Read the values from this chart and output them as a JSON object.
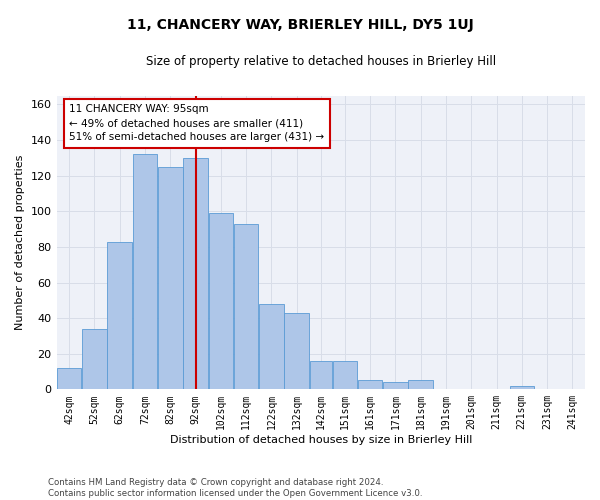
{
  "title": "11, CHANCERY WAY, BRIERLEY HILL, DY5 1UJ",
  "subtitle": "Size of property relative to detached houses in Brierley Hill",
  "xlabel": "Distribution of detached houses by size in Brierley Hill",
  "ylabel": "Number of detached properties",
  "bar_color": "#aec6e8",
  "bar_edge_color": "#5b9bd5",
  "vline_color": "#cc0000",
  "vline_x": 97,
  "annotation_text": "11 CHANCERY WAY: 95sqm\n← 49% of detached houses are smaller (411)\n51% of semi-detached houses are larger (431) →",
  "bins_left": [
    42,
    52,
    62,
    72,
    82,
    92,
    102,
    112,
    122,
    132,
    142,
    151,
    161,
    171,
    181,
    191,
    201,
    211,
    221,
    231,
    241
  ],
  "bin_labels": [
    "42sqm",
    "52sqm",
    "62sqm",
    "72sqm",
    "82sqm",
    "92sqm",
    "102sqm",
    "112sqm",
    "122sqm",
    "132sqm",
    "142sqm",
    "151sqm",
    "161sqm",
    "171sqm",
    "181sqm",
    "191sqm",
    "201sqm",
    "211sqm",
    "221sqm",
    "231sqm",
    "241sqm"
  ],
  "bar_heights": [
    12,
    34,
    83,
    132,
    125,
    130,
    99,
    93,
    48,
    43,
    16,
    16,
    5,
    4,
    5,
    0,
    0,
    0,
    2,
    0,
    0
  ],
  "bin_widths": [
    10,
    10,
    10,
    10,
    10,
    10,
    10,
    10,
    10,
    10,
    9,
    10,
    10,
    10,
    10,
    10,
    10,
    10,
    10,
    10,
    10
  ],
  "ylim": [
    0,
    165
  ],
  "yticks": [
    0,
    20,
    40,
    60,
    80,
    100,
    120,
    140,
    160
  ],
  "grid_color": "#d8dde8",
  "background_color": "#eef1f8",
  "footer_text": "Contains HM Land Registry data © Crown copyright and database right 2024.\nContains public sector information licensed under the Open Government Licence v3.0.",
  "fig_width": 6.0,
  "fig_height": 5.0,
  "title_fontsize": 10,
  "subtitle_fontsize": 8.5
}
